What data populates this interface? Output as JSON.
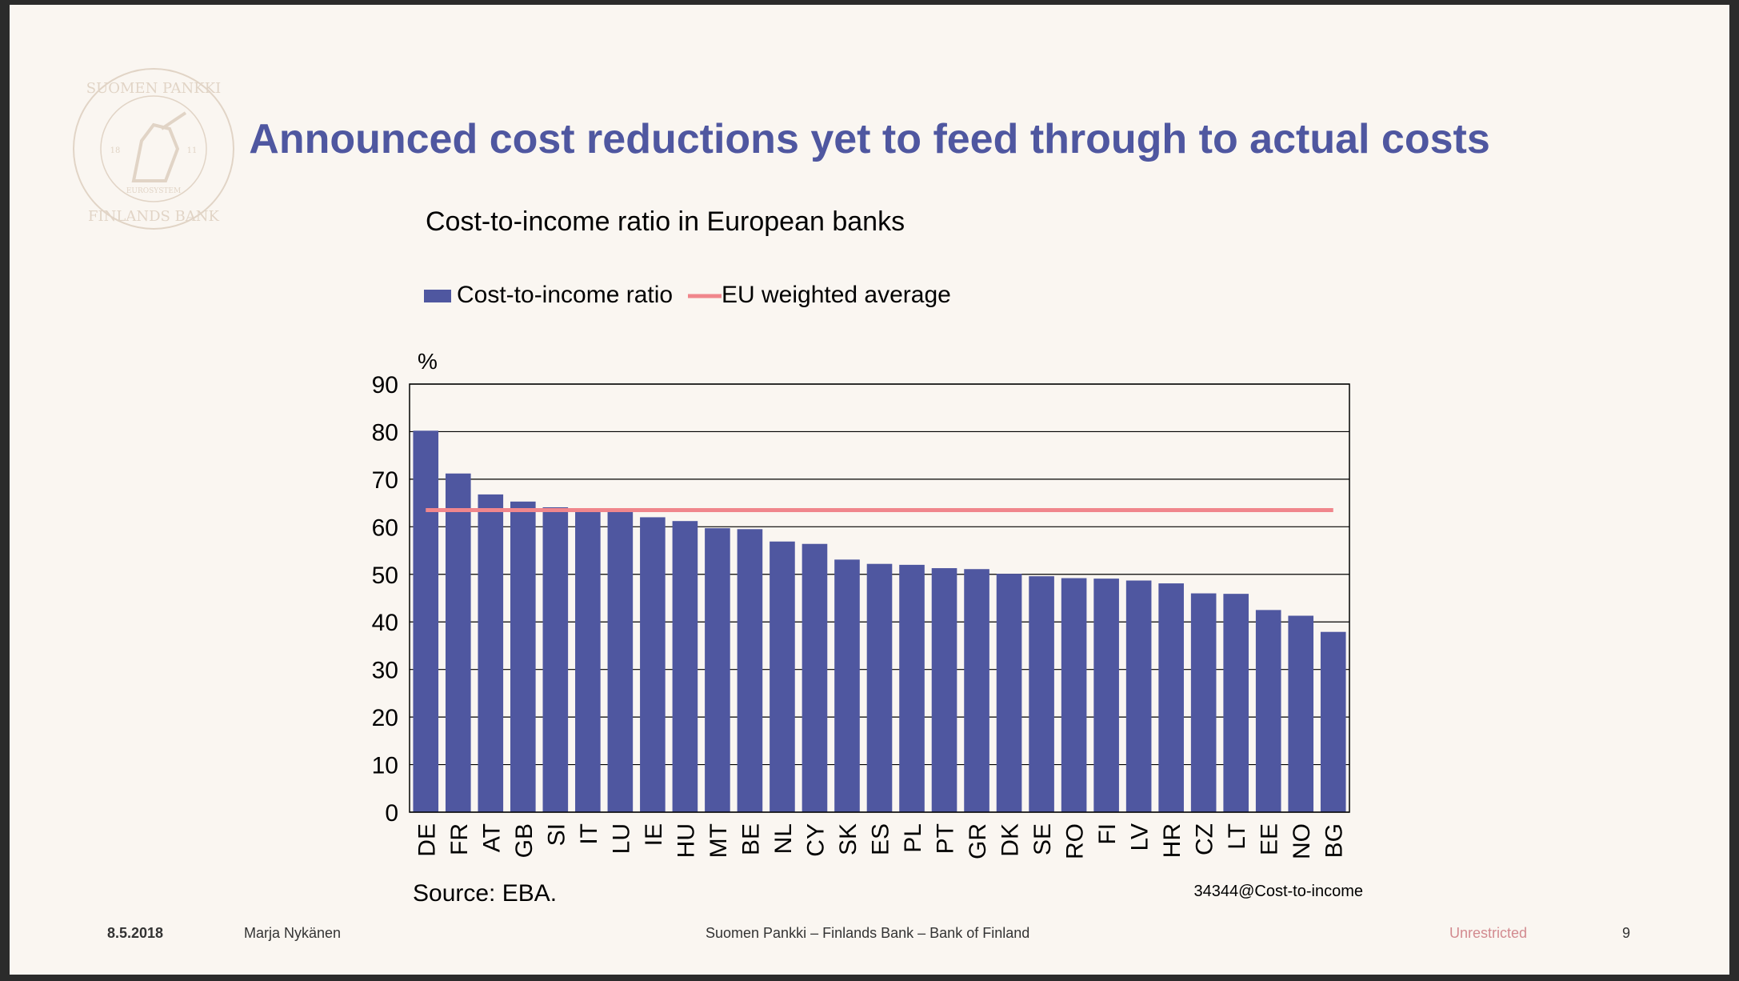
{
  "slide": {
    "title": "Announced cost reductions yet to feed through to actual costs",
    "logo_text": [
      "SUOMEN PANKKI",
      "FINLANDS BANK",
      "EUROSYSTEM",
      "18",
      "11"
    ]
  },
  "chart_data": {
    "type": "bar",
    "title": "Cost-to-income ratio in European banks",
    "ylabel": "%",
    "xlabel": "",
    "ylim": [
      0,
      90
    ],
    "yticks": [
      0,
      10,
      20,
      30,
      40,
      50,
      60,
      70,
      80,
      90
    ],
    "grid": true,
    "legend": [
      "Cost-to-income ratio",
      "EU weighted average"
    ],
    "categories": [
      "DE",
      "FR",
      "AT",
      "GB",
      "SI",
      "IT",
      "LU",
      "IE",
      "HU",
      "MT",
      "BE",
      "NL",
      "CY",
      "SK",
      "ES",
      "PL",
      "PT",
      "GR",
      "DK",
      "SE",
      "RO",
      "FI",
      "LV",
      "HR",
      "CZ",
      "LT",
      "EE",
      "NO",
      "BG"
    ],
    "series": [
      {
        "name": "Cost-to-income ratio",
        "type": "bar",
        "color": "#4f57a0",
        "values": [
          80.2,
          71.2,
          66.8,
          65.3,
          64.1,
          63.7,
          63.3,
          62.0,
          61.2,
          59.7,
          59.5,
          56.9,
          56.4,
          53.1,
          52.2,
          52.0,
          51.3,
          51.1,
          50.1,
          49.6,
          49.2,
          49.1,
          48.7,
          48.1,
          46.0,
          45.9,
          42.5,
          41.3,
          37.9
        ]
      },
      {
        "name": "EU weighted average",
        "type": "line",
        "color": "#f0868c",
        "value": 63.5
      }
    ],
    "source": "Source: EBA.",
    "code": "34344@Cost-to-income"
  },
  "footer": {
    "date": "8.5.2018",
    "author": "Marja Nykänen",
    "center": "Suomen Pankki – Finlands Bank – Bank of Finland",
    "classification": "Unrestricted",
    "page": "9"
  },
  "colors": {
    "accent": "#4f57a0",
    "avg_line": "#f0868c",
    "background": "#faf6f1"
  }
}
